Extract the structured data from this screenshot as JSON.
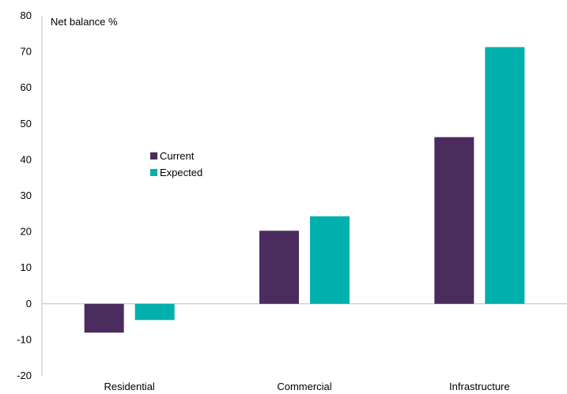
{
  "chart_data": {
    "type": "bar",
    "title": "",
    "ylabel": "Net balance %",
    "xlabel": "",
    "categories": [
      "Residential",
      "Commercial",
      "Infrastructure"
    ],
    "series": [
      {
        "name": "Current",
        "color": "#4b2c5e",
        "values": [
          -8,
          20.3,
          46.3
        ]
      },
      {
        "name": "Expected",
        "color": "#00b0ac",
        "values": [
          -4.5,
          24.3,
          71.3
        ]
      }
    ],
    "ylim": [
      -20,
      80
    ],
    "yticks": [
      -20,
      -10,
      0,
      10,
      20,
      30,
      40,
      50,
      60,
      70,
      80
    ],
    "grid": false,
    "legend_position": "center-left"
  }
}
